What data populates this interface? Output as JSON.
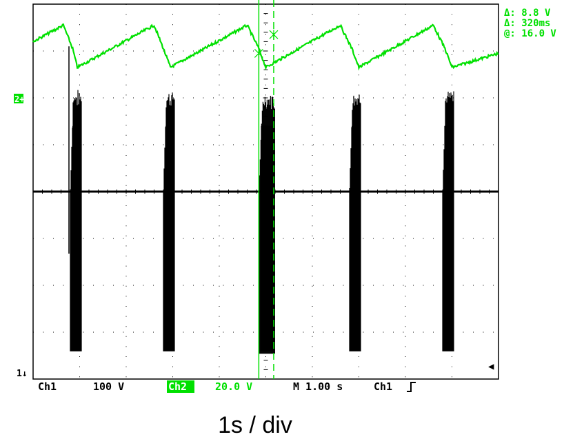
{
  "chart_data": {
    "type": "line",
    "title": "",
    "xlabel": "1s / div",
    "ylabel": "",
    "grid": true,
    "divisions": {
      "x": 10,
      "y": 8
    },
    "xlim": [
      0,
      10
    ],
    "channel_markers": {
      "ch1": "1↓",
      "ch2": "2+"
    },
    "cursor_readout": [
      "Δ: 8.8 V",
      "Δ: 320ms",
      "@: 16.0 V"
    ],
    "status_bar": {
      "ch1_label": "Ch1",
      "ch1_scale": "100 V",
      "ch2_label": "Ch2",
      "ch2_scale": "20.0 V",
      "timebase": "M 1.00 s",
      "trigger_source": "Ch1"
    },
    "cursors_x": [
      4.85,
      5.17
    ],
    "series": [
      {
        "channel": "Ch2",
        "color": "#00e000",
        "baseline_div": 1.25,
        "x": [
          0.0,
          0.65,
          0.85,
          0.95,
          2.6,
          2.8,
          2.95,
          4.6,
          4.85,
          5.0,
          6.6,
          6.85,
          7.0,
          8.6,
          8.85,
          9.0,
          10.0
        ],
        "y_div": [
          0.8,
          0.45,
          0.95,
          1.35,
          0.45,
          0.95,
          1.35,
          0.45,
          0.95,
          1.35,
          0.45,
          0.95,
          1.35,
          0.45,
          0.95,
          1.35,
          1.05
        ]
      },
      {
        "channel": "Ch1",
        "color": "#000000",
        "baseline_div": 4.0,
        "bursts": [
          {
            "start": 0.8,
            "end": 1.05,
            "top_div": 1.9,
            "bottom_div": 7.35,
            "spike_div": 0.9
          },
          {
            "start": 2.8,
            "end": 3.05,
            "top_div": 1.9,
            "bottom_div": 7.35
          },
          {
            "start": 4.85,
            "end": 5.2,
            "top_div": 1.95,
            "bottom_div": 7.4
          },
          {
            "start": 6.8,
            "end": 7.05,
            "top_div": 1.9,
            "bottom_div": 7.35
          },
          {
            "start": 8.8,
            "end": 9.05,
            "top_div": 1.9,
            "bottom_div": 7.35
          }
        ]
      }
    ]
  }
}
